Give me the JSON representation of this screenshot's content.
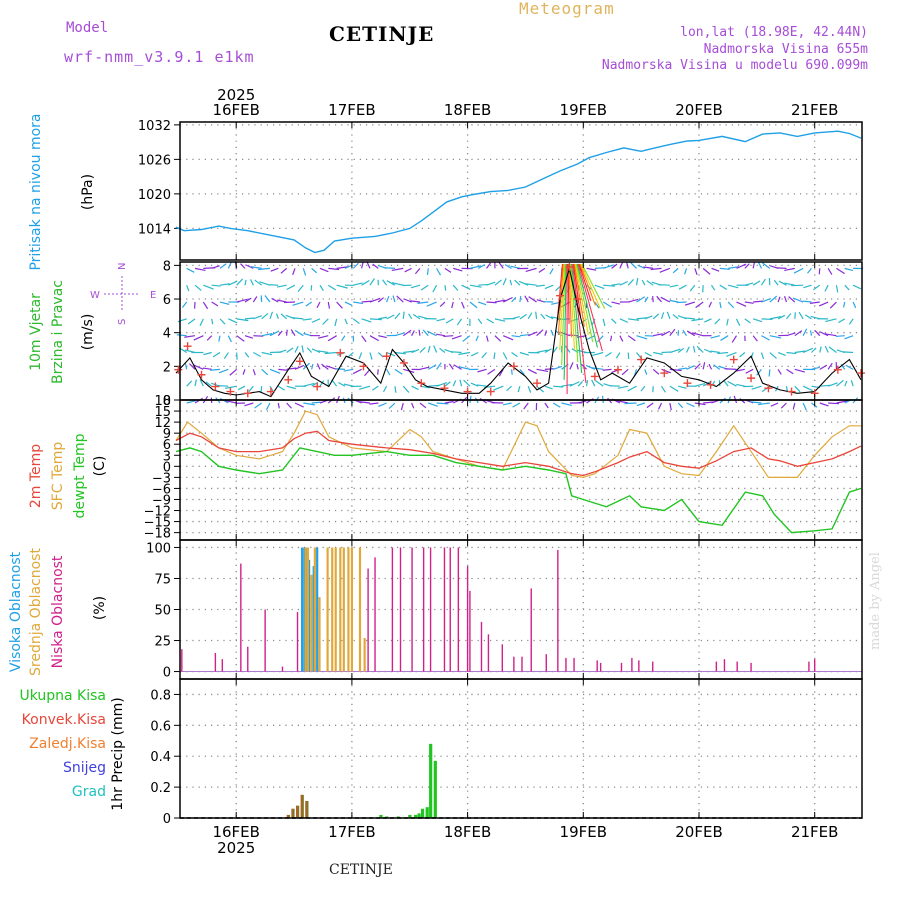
{
  "header": {
    "title": "CETINJE",
    "model_label": "Model",
    "model_name": "wrf-nmm_v3.9.1 e1km",
    "meteogram": "Meteogram",
    "location_lines": [
      "lon,lat (18.98E, 42.44N)",
      "Nadmorska Visina 655m",
      "Nadmorska Visina u modelu 690.099m"
    ]
  },
  "footer": {
    "station": "CETINJE"
  },
  "watermark": "made by Angel",
  "colors": {
    "pressure": "#1fa0e6",
    "wind_label": "#2db82d",
    "temp": "#e8463a",
    "sfc_temp": "#e0a83a",
    "dewpt": "#22c422",
    "high_cloud": "#1fa0e6",
    "mid_cloud": "#e0a83a",
    "low_cloud": "#d0208a",
    "total_rain": "#22c422",
    "conv_rain": "#e8463a",
    "frozen_rain": "#f08030",
    "snow": "#4040e0",
    "hail": "#20c0c0",
    "compass": "#a64dd6"
  },
  "chart_data": [
    {
      "type": "line",
      "panel": "pressure",
      "ylabel": [
        "Pritisak na nivou mora",
        "(hPa)"
      ],
      "yticks": [
        1014,
        1020,
        1026,
        1032
      ],
      "ylim": [
        1008.5,
        1032.5
      ],
      "x_start_label": "2025",
      "xticks": [
        "16FEB",
        "17FEB",
        "18FEB",
        "19FEB",
        "20FEB",
        "21FEB"
      ],
      "x_unit": "days since 16FEB 00:00",
      "x_range": [
        -0.52,
        5.4
      ],
      "series": [
        {
          "x": [
            -0.52,
            -0.45,
            -0.3,
            -0.15,
            -0.05,
            0.1,
            0.3,
            0.5,
            0.6,
            0.68,
            0.76,
            0.85,
            1.0,
            1.2,
            1.35,
            1.5,
            1.6,
            1.7,
            1.82,
            1.95,
            2.05,
            2.2,
            2.35,
            2.5,
            2.65,
            2.8,
            2.95,
            3.05,
            3.2,
            3.35,
            3.5,
            3.6,
            3.75,
            3.9,
            4.0,
            4.2,
            4.4,
            4.55,
            4.7,
            4.85,
            5.0,
            5.2,
            5.3,
            5.4
          ],
          "y": [
            1014.2,
            1013.6,
            1013.8,
            1014.4,
            1014.0,
            1013.6,
            1012.8,
            1012.0,
            1010.6,
            1009.8,
            1010.2,
            1011.8,
            1012.3,
            1012.6,
            1013.2,
            1014.0,
            1015.3,
            1016.8,
            1018.6,
            1019.5,
            1019.9,
            1020.4,
            1020.6,
            1021.2,
            1022.6,
            1024.0,
            1025.2,
            1026.3,
            1027.2,
            1028.0,
            1027.4,
            1027.9,
            1028.6,
            1029.2,
            1029.3,
            1030.0,
            1029.1,
            1030.4,
            1030.6,
            1030.0,
            1030.6,
            1030.9,
            1030.5,
            1029.7
          ]
        }
      ]
    },
    {
      "type": "line",
      "panel": "wind",
      "ylabel": [
        "10m Vjetar",
        "Brzina i Pravac",
        "(m/s)"
      ],
      "compass": {
        "n": "N",
        "s": "S",
        "e": "E",
        "w": "W"
      },
      "yticks": [
        0,
        2,
        4,
        6,
        8
      ],
      "ylim": [
        0,
        8.2
      ],
      "row_levels": [
        0,
        1,
        2,
        3,
        4,
        5,
        6,
        7,
        8
      ],
      "series": [
        {
          "name": "speed",
          "x": [
            -0.52,
            -0.4,
            -0.3,
            -0.2,
            -0.1,
            0.0,
            0.2,
            0.3,
            0.45,
            0.55,
            0.65,
            0.8,
            0.95,
            1.1,
            1.25,
            1.35,
            1.45,
            1.55,
            1.65,
            1.8,
            1.95,
            2.1,
            2.2,
            2.35,
            2.5,
            2.6,
            2.7,
            2.8,
            2.88,
            2.95,
            3.05,
            3.15,
            3.25,
            3.4,
            3.55,
            3.7,
            3.85,
            4.0,
            4.15,
            4.3,
            4.45,
            4.55,
            4.7,
            4.85,
            5.0,
            5.15,
            5.3,
            5.4
          ],
          "y": [
            1.6,
            2.5,
            1.2,
            0.6,
            0.4,
            0.3,
            0.5,
            0.2,
            1.8,
            2.8,
            1.4,
            0.8,
            2.6,
            2.2,
            1.0,
            3.0,
            2.2,
            1.2,
            0.8,
            0.6,
            0.4,
            0.4,
            1.0,
            2.2,
            1.4,
            0.6,
            1.0,
            6.0,
            7.8,
            5.6,
            3.0,
            1.2,
            1.6,
            1.0,
            2.5,
            2.2,
            1.4,
            1.2,
            0.8,
            1.6,
            2.6,
            1.0,
            0.6,
            0.4,
            0.5,
            1.6,
            2.4,
            1.2
          ]
        },
        {
          "name": "gust",
          "x": [
            -0.5,
            -0.42,
            -0.3,
            -0.18,
            -0.05,
            0.1,
            0.3,
            0.45,
            0.55,
            0.7,
            0.9,
            1.1,
            1.3,
            1.45,
            1.6,
            1.8,
            2.0,
            2.2,
            2.4,
            2.6,
            2.8,
            2.88,
            2.95,
            3.1,
            3.3,
            3.5,
            3.7,
            3.9,
            4.1,
            4.3,
            4.45,
            4.6,
            4.8,
            5.0,
            5.2,
            5.4
          ],
          "y": [
            1.8,
            3.2,
            1.5,
            0.8,
            0.5,
            0.4,
            0.5,
            1.2,
            2.3,
            0.8,
            2.8,
            2.0,
            2.6,
            2.2,
            1.0,
            0.7,
            0.5,
            0.5,
            2.0,
            1.0,
            6.2,
            7.9,
            6.0,
            1.4,
            1.8,
            2.4,
            1.6,
            1.0,
            0.9,
            2.4,
            1.3,
            0.7,
            0.5,
            0.4,
            1.8,
            1.6
          ]
        }
      ]
    },
    {
      "type": "line",
      "panel": "temperature",
      "ylabel": [
        "2m Temp",
        "SFC Temp",
        "dewpt Temp",
        "(C)"
      ],
      "yticks": [
        -18,
        -15,
        -12,
        -9,
        -6,
        -3,
        0,
        3,
        6,
        9,
        12,
        15,
        18
      ],
      "ylim": [
        -20,
        18
      ],
      "series": [
        {
          "name": "2m Temp",
          "x": [
            -0.52,
            -0.4,
            -0.3,
            -0.15,
            0.0,
            0.2,
            0.4,
            0.5,
            0.6,
            0.7,
            0.8,
            1.0,
            1.3,
            1.5,
            1.7,
            1.9,
            2.1,
            2.3,
            2.5,
            2.7,
            2.9,
            3.0,
            3.1,
            3.3,
            3.4,
            3.55,
            3.7,
            3.85,
            4.0,
            4.15,
            4.3,
            4.45,
            4.6,
            4.7,
            4.85,
            5.0,
            5.15,
            5.3,
            5.4
          ],
          "y": [
            7,
            9,
            8,
            5,
            4,
            4,
            5,
            7.5,
            9,
            9.5,
            7,
            6,
            5,
            4.5,
            3.5,
            2,
            1,
            0,
            1,
            0,
            -2,
            -2.5,
            -1.5,
            1,
            2.5,
            4,
            1,
            0,
            -0.5,
            1.5,
            4,
            5,
            2,
            1.5,
            0,
            1,
            2,
            4,
            5.5
          ]
        },
        {
          "name": "SFC Temp",
          "x": [
            -0.52,
            -0.42,
            -0.3,
            -0.15,
            0.0,
            0.2,
            0.4,
            0.5,
            0.6,
            0.7,
            0.8,
            1.0,
            1.3,
            1.5,
            1.6,
            1.7,
            1.9,
            2.1,
            2.3,
            2.5,
            2.6,
            2.7,
            2.9,
            3.0,
            3.1,
            3.3,
            3.4,
            3.55,
            3.7,
            3.85,
            4.0,
            4.15,
            4.3,
            4.45,
            4.6,
            4.7,
            4.85,
            5.0,
            5.15,
            5.3,
            5.4
          ],
          "y": [
            7,
            12,
            9,
            5,
            3,
            2,
            4,
            9,
            15,
            14,
            8,
            5,
            4,
            10,
            8,
            4,
            2,
            0,
            -1,
            12,
            11,
            4,
            -2.5,
            -3,
            -2,
            3,
            10,
            9,
            0,
            -2,
            -2.5,
            4,
            11,
            4,
            -3,
            -3,
            -3,
            3,
            8,
            11,
            11
          ]
        },
        {
          "name": "dewpt Temp",
          "x": [
            -0.52,
            -0.4,
            -0.3,
            -0.15,
            0.0,
            0.2,
            0.4,
            0.55,
            0.7,
            0.85,
            1.0,
            1.3,
            1.5,
            1.7,
            1.9,
            2.1,
            2.3,
            2.5,
            2.7,
            2.85,
            2.9,
            3.0,
            3.2,
            3.4,
            3.5,
            3.7,
            3.85,
            4.0,
            4.2,
            4.4,
            4.55,
            4.65,
            4.8,
            5.0,
            5.15,
            5.3,
            5.4
          ],
          "y": [
            4,
            5,
            4,
            0,
            -1,
            -2,
            -1,
            5,
            4,
            3,
            3,
            4,
            3,
            3,
            1,
            0,
            -1,
            0,
            -1,
            -2,
            -8,
            -9,
            -11,
            -8,
            -11,
            -12,
            -9,
            -15,
            -16,
            -7,
            -8,
            -13,
            -18,
            -17.5,
            -17,
            -7,
            -6
          ]
        }
      ]
    },
    {
      "type": "bar",
      "panel": "cloud",
      "ylabel": [
        "Visoka Oblacnost",
        "Srednja Oblacnost",
        "Niska Oblacnost",
        "(%)"
      ],
      "yticks": [
        0,
        25,
        50,
        75,
        100
      ],
      "ylim": [
        -6,
        106
      ],
      "series": [
        {
          "name": "Visoka Oblacnost",
          "x": [
            0.57,
            0.59,
            0.61,
            0.63,
            0.67,
            0.7
          ],
          "y": [
            100,
            100,
            100,
            90,
            85,
            100
          ]
        },
        {
          "name": "Srednja Oblacnost",
          "x": [
            0.6,
            0.62,
            0.65,
            0.68,
            0.72,
            0.79,
            0.83,
            0.86,
            0.9,
            0.93,
            0.97,
            1.0,
            1.07,
            1.11
          ],
          "y": [
            100,
            100,
            78,
            100,
            60,
            100,
            100,
            100,
            100,
            100,
            100,
            100,
            100,
            27
          ]
        },
        {
          "name": "Niska Oblacnost",
          "x": [
            -0.47,
            -0.18,
            -0.12,
            0.04,
            0.1,
            0.25,
            0.4,
            0.53,
            1.14,
            1.2,
            1.35,
            1.42,
            1.52,
            1.62,
            1.68,
            1.8,
            1.85,
            1.92,
            2.0,
            2.02,
            2.12,
            2.18,
            2.3,
            2.4,
            2.47,
            2.55,
            2.68,
            2.78,
            2.85,
            2.92,
            3.12,
            3.15,
            3.33,
            3.42,
            3.48,
            3.6,
            4.15,
            4.22,
            4.33,
            4.45,
            4.95,
            5.0
          ],
          "y": [
            18,
            15,
            10,
            87,
            20,
            50,
            4,
            48,
            83,
            92,
            100,
            100,
            100,
            100,
            100,
            100,
            100,
            100,
            85,
            65,
            40,
            30,
            22,
            12,
            12,
            67,
            14,
            98,
            11,
            11,
            9,
            7,
            7,
            11,
            9,
            8,
            8,
            10,
            8,
            7,
            8,
            10
          ]
        }
      ]
    },
    {
      "type": "bar",
      "panel": "precip",
      "ylabel": [
        "1hr Precip (mm)"
      ],
      "legend": [
        "Ukupna Kisa",
        "Konvek.Kisa",
        "Zaledj.Kisa",
        "Snijeg",
        "Grad"
      ],
      "yticks": [
        0,
        0.2,
        0.4,
        0.6,
        0.8
      ],
      "ylim": [
        0,
        0.9
      ],
      "series": [
        {
          "name": "Ukupna Kisa",
          "x": [
            0.45,
            0.49,
            0.53,
            0.57,
            0.61,
            1.25,
            1.3,
            1.4,
            1.5,
            1.55,
            1.58,
            1.61,
            1.65,
            1.68,
            1.72
          ],
          "y": [
            0.02,
            0.06,
            0.08,
            0.15,
            0.11,
            0.02,
            0.01,
            0.01,
            0.02,
            0.02,
            0.03,
            0.06,
            0.07,
            0.48,
            0.37
          ]
        },
        {
          "name": "Konvek.Kisa",
          "x": [
            0.45,
            0.49,
            0.53,
            0.57,
            0.61
          ],
          "y": [
            0.02,
            0.06,
            0.08,
            0.15,
            0.11
          ]
        }
      ]
    }
  ]
}
